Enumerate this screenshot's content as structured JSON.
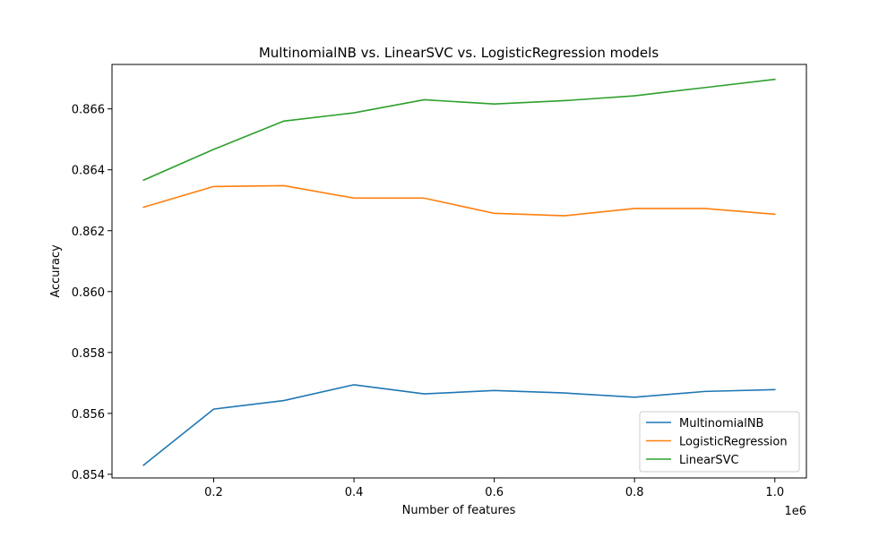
{
  "chart_data": {
    "type": "line",
    "title": "MultinomialNB vs. LinearSVC vs. LogisticRegression models",
    "xlabel": "Number of features",
    "ylabel": "Accuracy",
    "x_offset_label": "1e6",
    "x": [
      100000,
      200000,
      300000,
      400000,
      500000,
      600000,
      700000,
      800000,
      900000,
      1000000
    ],
    "xlim": [
      55000,
      1045000
    ],
    "ylim": [
      0.85388,
      0.86746
    ],
    "x_ticks": [
      200000,
      400000,
      600000,
      800000,
      1000000
    ],
    "x_tick_labels": [
      "0.2",
      "0.4",
      "0.6",
      "0.8",
      "1.0"
    ],
    "y_ticks": [
      0.854,
      0.856,
      0.858,
      0.86,
      0.862,
      0.864,
      0.866
    ],
    "y_tick_labels": [
      "0.854",
      "0.856",
      "0.858",
      "0.860",
      "0.862",
      "0.864",
      "0.866"
    ],
    "grid": false,
    "legend_position": "bottom-right",
    "series": [
      {
        "name": "MultinomialNB",
        "color": "#1f77b4",
        "values": [
          0.8543,
          0.85614,
          0.85642,
          0.85694,
          0.85664,
          0.85675,
          0.85667,
          0.85653,
          0.85672,
          0.85678
        ]
      },
      {
        "name": "LogisticRegression",
        "color": "#ff7f0e",
        "values": [
          0.86277,
          0.86345,
          0.86348,
          0.86307,
          0.86307,
          0.86257,
          0.86249,
          0.86273,
          0.86273,
          0.86254
        ]
      },
      {
        "name": "LinearSVC",
        "color": "#2ca02c",
        "values": [
          0.86366,
          0.86467,
          0.8656,
          0.86587,
          0.8663,
          0.86616,
          0.86627,
          0.86643,
          0.8667,
          0.86697
        ]
      }
    ]
  }
}
